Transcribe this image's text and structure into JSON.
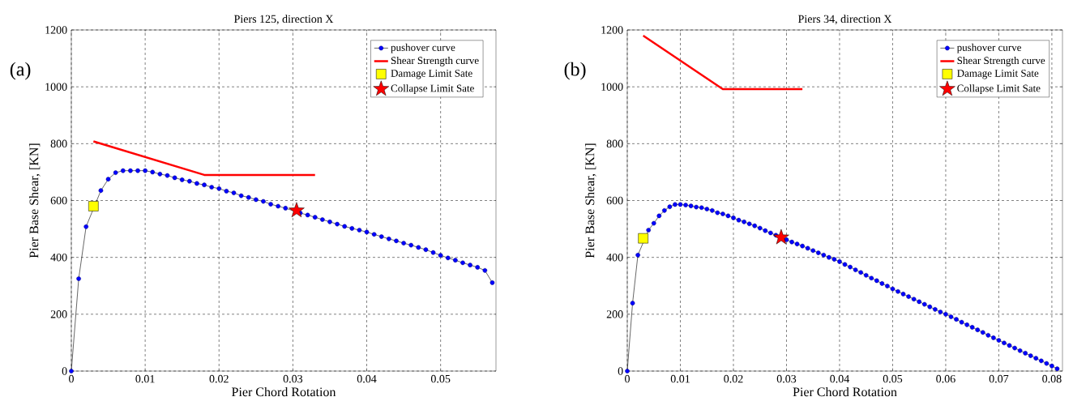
{
  "chart_data": [
    {
      "type": "line",
      "title": "Piers 125, direction X",
      "xlabel": "Pier Chord Rotation",
      "ylabel": "Pier Base Shear, [KN]",
      "annotations": [
        "(a)"
      ],
      "xlim": [
        0,
        0.0575
      ],
      "ylim": [
        0,
        1200
      ],
      "xticks": [
        0,
        0.01,
        0.02,
        0.03,
        0.04,
        0.05
      ],
      "yticks": [
        0,
        200,
        400,
        600,
        800,
        1000,
        1200
      ],
      "grid": true,
      "legend": "top right",
      "series": [
        {
          "name": "pushover curve",
          "marker": "circle",
          "color": "#0000ff",
          "x": [
            0,
            0.001,
            0.002,
            0.003,
            0.004,
            0.005,
            0.006,
            0.007,
            0.008,
            0.009,
            0.01,
            0.011,
            0.012,
            0.013,
            0.014,
            0.015,
            0.016,
            0.017,
            0.018,
            0.019,
            0.02,
            0.021,
            0.022,
            0.023,
            0.024,
            0.025,
            0.026,
            0.027,
            0.028,
            0.029,
            0.03,
            0.031,
            0.032,
            0.033,
            0.034,
            0.035,
            0.036,
            0.037,
            0.038,
            0.039,
            0.04,
            0.041,
            0.042,
            0.043,
            0.044,
            0.045,
            0.046,
            0.047,
            0.048,
            0.049,
            0.05,
            0.051,
            0.052,
            0.053,
            0.054,
            0.055,
            0.056,
            0.057
          ],
          "values": [
            0,
            325,
            508,
            null,
            635,
            675,
            698,
            705,
            705,
            705,
            705,
            700,
            693,
            688,
            680,
            673,
            668,
            660,
            655,
            647,
            642,
            633,
            627,
            617,
            611,
            603,
            597,
            587,
            580,
            573,
            null,
            556,
            549,
            541,
            533,
            525,
            517,
            509,
            502,
            496,
            489,
            481,
            473,
            465,
            458,
            450,
            443,
            435,
            427,
            417,
            407,
            398,
            390,
            381,
            373,
            365,
            354,
            311
          ]
        },
        {
          "name": "Shear Strength curve",
          "color": "#ff0000",
          "x": [
            0.003,
            0.018,
            0.033
          ],
          "values": [
            808,
            690,
            690
          ]
        },
        {
          "name": "Damage Limit Sate",
          "type": "scatter",
          "marker": "square",
          "color": "#ffff00",
          "x": [
            0.003
          ],
          "values": [
            580
          ]
        },
        {
          "name": "Collapse Limit Sate",
          "type": "scatter",
          "marker": "star",
          "color": "#ff0000",
          "x": [
            0.0305
          ],
          "values": [
            565
          ]
        }
      ]
    },
    {
      "type": "line",
      "title": "Piers 34, direction X",
      "xlabel": "Pier Chord Rotation",
      "ylabel": "Pier Base Shear, [KN]",
      "annotations": [
        "(b)"
      ],
      "xlim": [
        0,
        0.082
      ],
      "ylim": [
        0,
        1200
      ],
      "xticks": [
        0,
        0.01,
        0.02,
        0.03,
        0.04,
        0.05,
        0.06,
        0.07,
        0.08
      ],
      "yticks": [
        0,
        200,
        400,
        600,
        800,
        1000,
        1200
      ],
      "grid": true,
      "legend": "top right",
      "series": [
        {
          "name": "pushover curve",
          "marker": "circle",
          "color": "#0000ff",
          "x": [
            0,
            0.001,
            0.002,
            0.003,
            0.004,
            0.005,
            0.006,
            0.007,
            0.008,
            0.009,
            0.01,
            0.011,
            0.012,
            0.013,
            0.014,
            0.015,
            0.016,
            0.017,
            0.018,
            0.019,
            0.02,
            0.021,
            0.022,
            0.023,
            0.024,
            0.025,
            0.026,
            0.027,
            0.028,
            0.029,
            0.03,
            0.031,
            0.032,
            0.033,
            0.034,
            0.035,
            0.036,
            0.037,
            0.038,
            0.039,
            0.04,
            0.041,
            0.042,
            0.043,
            0.044,
            0.045,
            0.046,
            0.047,
            0.048,
            0.049,
            0.05,
            0.051,
            0.052,
            0.053,
            0.054,
            0.055,
            0.056,
            0.057,
            0.058,
            0.059,
            0.06,
            0.061,
            0.062,
            0.063,
            0.064,
            0.065,
            0.066,
            0.067,
            0.068,
            0.069,
            0.07,
            0.071,
            0.072,
            0.073,
            0.074,
            0.075,
            0.076,
            0.077,
            0.078,
            0.079,
            0.08,
            0.081
          ],
          "values": [
            0,
            239,
            408,
            null,
            496,
            520,
            546,
            565,
            578,
            586,
            586,
            584,
            581,
            577,
            575,
            570,
            565,
            557,
            553,
            546,
            539,
            531,
            525,
            518,
            511,
            503,
            494,
            486,
            478,
            null,
            462,
            454,
            447,
            440,
            432,
            424,
            416,
            408,
            400,
            393,
            385,
            375,
            366,
            356,
            347,
            337,
            327,
            318,
            308,
            299,
            289,
            280,
            271,
            262,
            253,
            244,
            235,
            226,
            217,
            208,
            200,
            191,
            182,
            172,
            163,
            154,
            145,
            136,
            126,
            117,
            108,
            99,
            90,
            81,
            72,
            63,
            54,
            45,
            36,
            27,
            18,
            8
          ]
        },
        {
          "name": "Shear Strength curve",
          "color": "#ff0000",
          "x": [
            0.003,
            0.018,
            0.033
          ],
          "values": [
            1180,
            992,
            992
          ]
        },
        {
          "name": "Damage Limit Sate",
          "type": "scatter",
          "marker": "square",
          "color": "#ffff00",
          "x": [
            0.003
          ],
          "values": [
            467
          ]
        },
        {
          "name": "Collapse Limit Sate",
          "type": "scatter",
          "marker": "star",
          "color": "#ff0000",
          "x": [
            0.029
          ],
          "values": [
            470
          ]
        }
      ]
    }
  ]
}
